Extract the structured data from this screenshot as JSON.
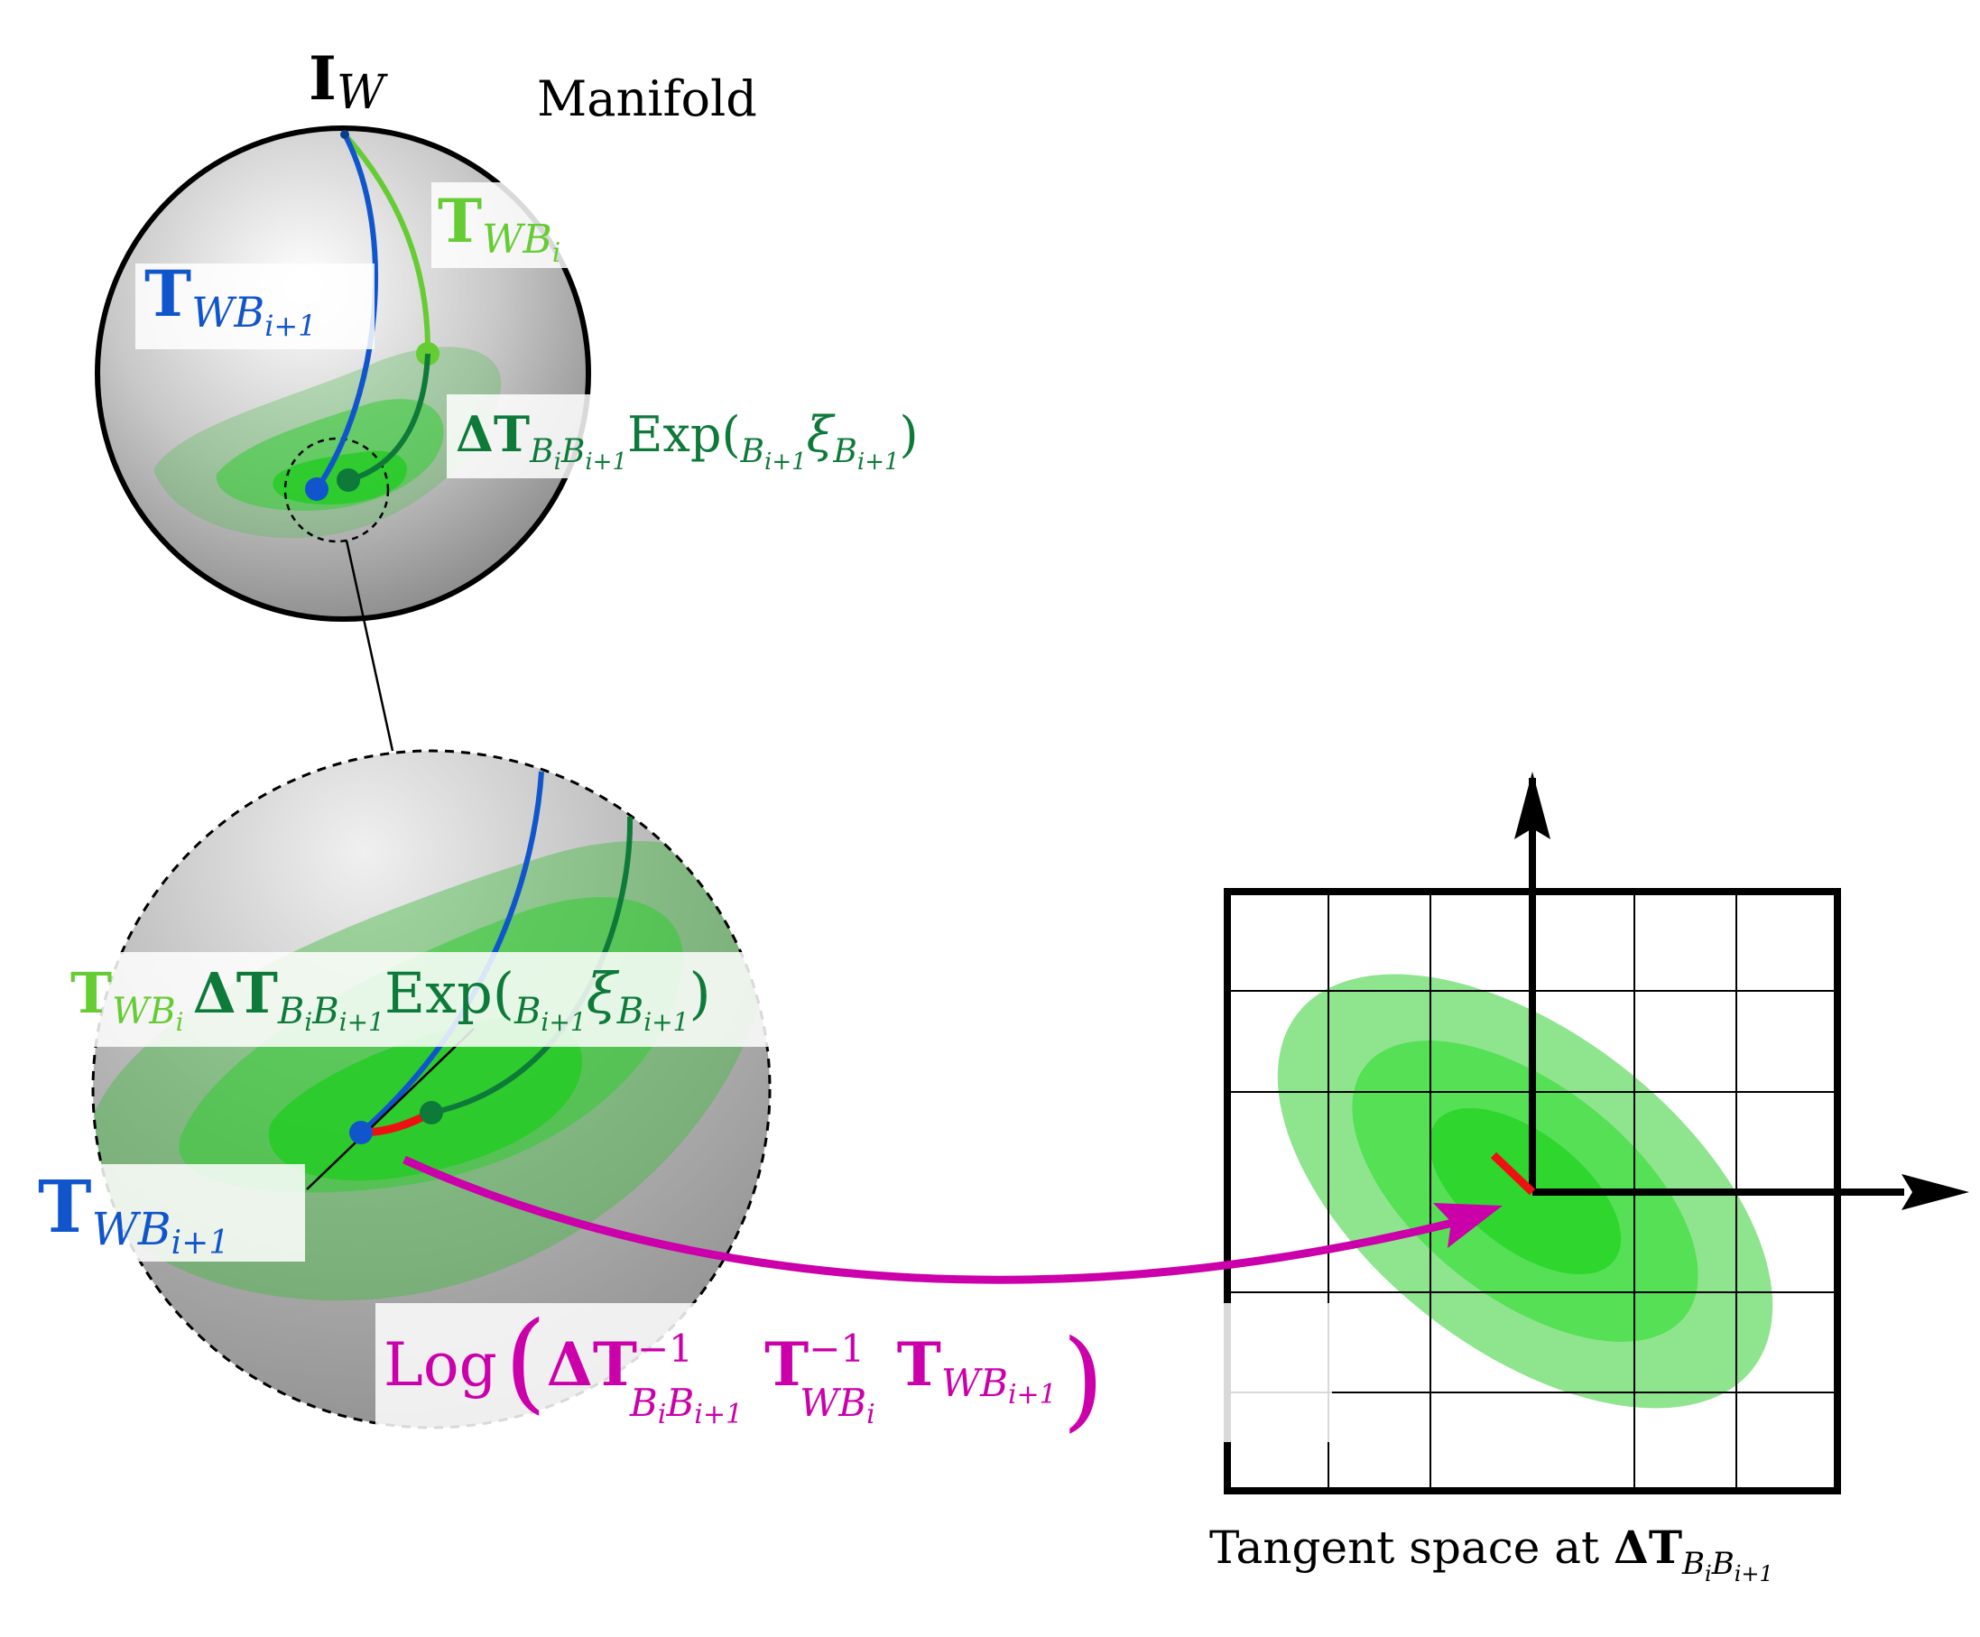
{
  "diagram": {
    "manifold_label": "Manifold",
    "identity_label": {
      "symbol": "I",
      "sub": "W"
    },
    "labels": {
      "t_wbi": {
        "symbol": "T",
        "sub": "WB",
        "subsub": "i"
      },
      "t_wbi1": {
        "symbol": "T",
        "sub": "WB",
        "subsub": "i+1"
      },
      "t_wbi1_zoom": {
        "symbol": "T",
        "sub": "WB",
        "subsub": "i+1"
      },
      "delta_exp": {
        "delta": "ΔT",
        "delta_sub": "B",
        "delta_sub_i": "i",
        "delta_sub2": "B",
        "delta_sub2_i": "i+1",
        "exp": "Exp(",
        "xi_pre_sub": "B",
        "xi_pre_sub_i": "i+1",
        "xi": "ξ",
        "xi_sub": "B",
        "xi_sub_i": "i+1",
        "close": ")"
      },
      "composed": {
        "t": "T",
        "t_sub": "WB",
        "t_sub_i": "i",
        "delta": "ΔT",
        "delta_sub": "B",
        "delta_sub_i": "i",
        "delta_sub2": "B",
        "delta_sub2_i": "i+1",
        "exp": "Exp(",
        "xi_pre_sub": "B",
        "xi_pre_sub_i": "i+1",
        "xi": "ξ",
        "xi_sub": "B",
        "xi_sub_i": "i+1",
        "close": ")"
      },
      "log": {
        "log": "Log",
        "open": "(",
        "delta": "ΔT",
        "sup": "−1",
        "delta_sub": "B",
        "delta_sub_i": "i",
        "delta_sub2": "B",
        "delta_sub2_i": "i+1",
        "t1": "T",
        "t1_sup": "−1",
        "t1_sub": "WB",
        "t1_sub_i": "i",
        "t2": "T",
        "t2_sub": "WB",
        "t2_sub_i": "i+1",
        "close": ")"
      },
      "tangent": {
        "text": "Tangent space at ",
        "delta": "ΔT",
        "delta_sub": "B",
        "delta_sub_i": "i",
        "delta_sub2": "B",
        "delta_sub2_i": "i+1"
      }
    },
    "colors": {
      "blue": "#1155cc",
      "light_green": "#66cc33",
      "dark_green": "#0e7a3a",
      "magenta": "#cc00aa",
      "red": "#ee1111",
      "black": "#000000"
    }
  }
}
